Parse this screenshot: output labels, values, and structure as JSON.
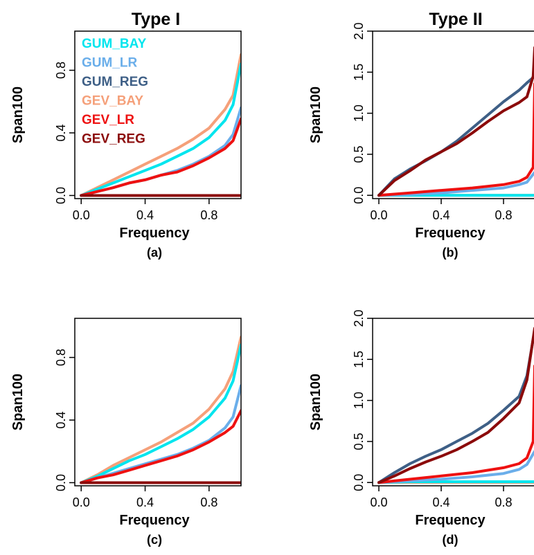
{
  "column_titles": [
    "Type I",
    "Type II"
  ],
  "colors": {
    "GUM_BAY": "#00e5ee",
    "GUM_LR": "#6aaeea",
    "GUM_REG": "#3e5f86",
    "GEV_BAY": "#f5a07a",
    "GEV_LR": "#ee1111",
    "GEV_REG": "#8b0a0a"
  },
  "chart_data": [
    {
      "type": "line",
      "panel": "a",
      "column_title": "Type I",
      "caption": "(a)",
      "xlabel": "Frequency",
      "ylabel": "Span100",
      "xlim": [
        -0.04,
        1.0
      ],
      "ylim": [
        -0.02,
        1.05
      ],
      "xticks": [
        "0.0",
        "0.4",
        "0.8"
      ],
      "yticks": [
        "0.0",
        "0.4",
        "0.8"
      ],
      "legend": [
        "GUM_BAY",
        "GUM_LR",
        "GUM_REG",
        "GEV_BAY",
        "GEV_LR",
        "GEV_REG"
      ],
      "legend_position": "top-left",
      "series": [
        {
          "name": "GUM_BAY",
          "points": [
            [
              0,
              0
            ],
            [
              0.1,
              0.04
            ],
            [
              0.2,
              0.08
            ],
            [
              0.3,
              0.12
            ],
            [
              0.4,
              0.16
            ],
            [
              0.5,
              0.2
            ],
            [
              0.6,
              0.25
            ],
            [
              0.7,
              0.3
            ],
            [
              0.8,
              0.37
            ],
            [
              0.9,
              0.48
            ],
            [
              0.95,
              0.58
            ],
            [
              1.0,
              0.84
            ]
          ]
        },
        {
          "name": "GUM_LR",
          "points": [
            [
              0,
              0
            ],
            [
              0.1,
              0.025
            ],
            [
              0.2,
              0.05
            ],
            [
              0.3,
              0.08
            ],
            [
              0.4,
              0.1
            ],
            [
              0.5,
              0.13
            ],
            [
              0.6,
              0.16
            ],
            [
              0.7,
              0.2
            ],
            [
              0.8,
              0.25
            ],
            [
              0.9,
              0.32
            ],
            [
              0.95,
              0.39
            ],
            [
              1.0,
              0.56
            ]
          ]
        },
        {
          "name": "GUM_REG",
          "points": [
            [
              0,
              0
            ],
            [
              1.0,
              0
            ]
          ]
        },
        {
          "name": "GEV_BAY",
          "points": [
            [
              0,
              0
            ],
            [
              0.1,
              0.05
            ],
            [
              0.2,
              0.1
            ],
            [
              0.3,
              0.15
            ],
            [
              0.4,
              0.2
            ],
            [
              0.5,
              0.25
            ],
            [
              0.6,
              0.3
            ],
            [
              0.7,
              0.36
            ],
            [
              0.8,
              0.43
            ],
            [
              0.9,
              0.55
            ],
            [
              0.95,
              0.64
            ],
            [
              1.0,
              0.9
            ]
          ]
        },
        {
          "name": "GEV_LR",
          "points": [
            [
              0,
              0
            ],
            [
              0.1,
              0.025
            ],
            [
              0.2,
              0.05
            ],
            [
              0.3,
              0.08
            ],
            [
              0.4,
              0.1
            ],
            [
              0.5,
              0.13
            ],
            [
              0.6,
              0.15
            ],
            [
              0.7,
              0.19
            ],
            [
              0.8,
              0.24
            ],
            [
              0.9,
              0.3
            ],
            [
              0.95,
              0.35
            ],
            [
              1.0,
              0.49
            ]
          ]
        },
        {
          "name": "GEV_REG",
          "points": [
            [
              0,
              0
            ],
            [
              1.0,
              0
            ]
          ]
        }
      ]
    },
    {
      "type": "line",
      "panel": "b",
      "column_title": "Type II",
      "caption": "(b)",
      "xlabel": "Frequency",
      "ylabel": "Span100",
      "xlim": [
        -0.04,
        1.0
      ],
      "ylim": [
        -0.04,
        2.0
      ],
      "xticks": [
        "0.0",
        "0.4",
        "0.8"
      ],
      "yticks": [
        "0.0",
        "0.5",
        "1.0",
        "1.5",
        "2.0"
      ],
      "series": [
        {
          "name": "GUM_BAY",
          "points": [
            [
              0,
              0
            ],
            [
              0.2,
              0.0
            ],
            [
              0.4,
              0.0
            ],
            [
              0.6,
              0.0
            ],
            [
              0.8,
              0.0
            ],
            [
              1.0,
              0.0
            ]
          ]
        },
        {
          "name": "GUM_LR",
          "points": [
            [
              0,
              0
            ],
            [
              0.2,
              0.01
            ],
            [
              0.4,
              0.03
            ],
            [
              0.6,
              0.06
            ],
            [
              0.8,
              0.09
            ],
            [
              0.9,
              0.13
            ],
            [
              0.95,
              0.16
            ],
            [
              1.0,
              0.28
            ]
          ]
        },
        {
          "name": "GUM_REG",
          "points": [
            [
              0,
              0
            ],
            [
              0.1,
              0.2
            ],
            [
              0.2,
              0.32
            ],
            [
              0.3,
              0.42
            ],
            [
              0.4,
              0.53
            ],
            [
              0.5,
              0.66
            ],
            [
              0.6,
              0.82
            ],
            [
              0.7,
              0.98
            ],
            [
              0.8,
              1.14
            ],
            [
              0.9,
              1.28
            ],
            [
              0.95,
              1.37
            ],
            [
              1.0,
              1.45
            ]
          ]
        },
        {
          "name": "GEV_BAY",
          "points": [
            [
              0,
              0
            ],
            [
              1.0,
              0
            ]
          ]
        },
        {
          "name": "GEV_LR",
          "points": [
            [
              0,
              0
            ],
            [
              0.2,
              0.03
            ],
            [
              0.4,
              0.06
            ],
            [
              0.6,
              0.09
            ],
            [
              0.8,
              0.13
            ],
            [
              0.9,
              0.17
            ],
            [
              0.95,
              0.22
            ],
            [
              0.99,
              0.34
            ],
            [
              1.0,
              1.36
            ]
          ]
        },
        {
          "name": "GEV_REG",
          "points": [
            [
              0,
              0
            ],
            [
              0.1,
              0.18
            ],
            [
              0.2,
              0.3
            ],
            [
              0.3,
              0.43
            ],
            [
              0.4,
              0.53
            ],
            [
              0.5,
              0.63
            ],
            [
              0.6,
              0.76
            ],
            [
              0.7,
              0.9
            ],
            [
              0.8,
              1.03
            ],
            [
              0.9,
              1.13
            ],
            [
              0.95,
              1.2
            ],
            [
              0.99,
              1.45
            ],
            [
              1.0,
              1.8
            ]
          ]
        }
      ]
    },
    {
      "type": "line",
      "panel": "c",
      "caption": "(c)",
      "xlabel": "Frequency",
      "ylabel": "Span100",
      "xlim": [
        -0.04,
        1.0
      ],
      "ylim": [
        -0.02,
        1.05
      ],
      "xticks": [
        "0.0",
        "0.4",
        "0.8"
      ],
      "yticks": [
        "0.0",
        "0.4",
        "0.8"
      ],
      "series": [
        {
          "name": "GUM_BAY",
          "points": [
            [
              0,
              0
            ],
            [
              0.1,
              0.04
            ],
            [
              0.2,
              0.09
            ],
            [
              0.3,
              0.14
            ],
            [
              0.4,
              0.18
            ],
            [
              0.5,
              0.23
            ],
            [
              0.6,
              0.28
            ],
            [
              0.7,
              0.34
            ],
            [
              0.8,
              0.42
            ],
            [
              0.9,
              0.54
            ],
            [
              0.95,
              0.65
            ],
            [
              1.0,
              0.88
            ]
          ]
        },
        {
          "name": "GUM_LR",
          "points": [
            [
              0,
              0
            ],
            [
              0.1,
              0.03
            ],
            [
              0.2,
              0.06
            ],
            [
              0.3,
              0.09
            ],
            [
              0.4,
              0.12
            ],
            [
              0.5,
              0.15
            ],
            [
              0.6,
              0.18
            ],
            [
              0.7,
              0.22
            ],
            [
              0.8,
              0.27
            ],
            [
              0.9,
              0.35
            ],
            [
              0.95,
              0.42
            ],
            [
              1.0,
              0.62
            ]
          ]
        },
        {
          "name": "GUM_REG",
          "points": [
            [
              0,
              0
            ],
            [
              1.0,
              0
            ]
          ]
        },
        {
          "name": "GEV_BAY",
          "points": [
            [
              0,
              0
            ],
            [
              0.1,
              0.05
            ],
            [
              0.2,
              0.11
            ],
            [
              0.3,
              0.16
            ],
            [
              0.4,
              0.21
            ],
            [
              0.5,
              0.26
            ],
            [
              0.6,
              0.32
            ],
            [
              0.7,
              0.38
            ],
            [
              0.8,
              0.47
            ],
            [
              0.9,
              0.6
            ],
            [
              0.95,
              0.71
            ],
            [
              1.0,
              0.93
            ]
          ]
        },
        {
          "name": "GEV_LR",
          "points": [
            [
              0,
              0
            ],
            [
              0.1,
              0.03
            ],
            [
              0.2,
              0.05
            ],
            [
              0.3,
              0.08
            ],
            [
              0.4,
              0.11
            ],
            [
              0.5,
              0.14
            ],
            [
              0.6,
              0.17
            ],
            [
              0.7,
              0.21
            ],
            [
              0.8,
              0.26
            ],
            [
              0.9,
              0.32
            ],
            [
              0.95,
              0.36
            ],
            [
              1.0,
              0.46
            ]
          ]
        },
        {
          "name": "GEV_REG",
          "points": [
            [
              0,
              0
            ],
            [
              1.0,
              0
            ]
          ]
        }
      ]
    },
    {
      "type": "line",
      "panel": "d",
      "caption": "(d)",
      "xlabel": "Frequency",
      "ylabel": "Span100",
      "xlim": [
        -0.04,
        1.0
      ],
      "ylim": [
        -0.04,
        2.0
      ],
      "xticks": [
        "0.0",
        "0.4",
        "0.8"
      ],
      "yticks": [
        "0.0",
        "0.5",
        "1.0",
        "1.5",
        "2.0"
      ],
      "series": [
        {
          "name": "GUM_BAY",
          "points": [
            [
              0,
              0
            ],
            [
              0.2,
              0.01
            ],
            [
              0.4,
              0.01
            ],
            [
              0.6,
              0.01
            ],
            [
              0.8,
              0.01
            ],
            [
              1.0,
              0.01
            ]
          ]
        },
        {
          "name": "GUM_LR",
          "points": [
            [
              0,
              0
            ],
            [
              0.2,
              0.02
            ],
            [
              0.4,
              0.04
            ],
            [
              0.6,
              0.07
            ],
            [
              0.8,
              0.11
            ],
            [
              0.9,
              0.16
            ],
            [
              0.95,
              0.22
            ],
            [
              1.0,
              0.38
            ]
          ]
        },
        {
          "name": "GUM_REG",
          "points": [
            [
              0,
              0
            ],
            [
              0.1,
              0.12
            ],
            [
              0.2,
              0.23
            ],
            [
              0.3,
              0.32
            ],
            [
              0.4,
              0.4
            ],
            [
              0.5,
              0.5
            ],
            [
              0.6,
              0.6
            ],
            [
              0.7,
              0.72
            ],
            [
              0.8,
              0.88
            ],
            [
              0.9,
              1.05
            ],
            [
              0.95,
              1.3
            ],
            [
              1.0,
              1.85
            ]
          ]
        },
        {
          "name": "GEV_BAY",
          "points": [
            [
              0,
              0
            ],
            [
              1.0,
              0
            ]
          ]
        },
        {
          "name": "GEV_LR",
          "points": [
            [
              0,
              0
            ],
            [
              0.2,
              0.04
            ],
            [
              0.4,
              0.08
            ],
            [
              0.6,
              0.12
            ],
            [
              0.8,
              0.18
            ],
            [
              0.9,
              0.23
            ],
            [
              0.95,
              0.3
            ],
            [
              0.99,
              0.5
            ],
            [
              1.0,
              1.42
            ]
          ]
        },
        {
          "name": "GEV_REG",
          "points": [
            [
              0,
              0
            ],
            [
              0.1,
              0.08
            ],
            [
              0.2,
              0.17
            ],
            [
              0.3,
              0.25
            ],
            [
              0.4,
              0.32
            ],
            [
              0.5,
              0.4
            ],
            [
              0.6,
              0.5
            ],
            [
              0.7,
              0.61
            ],
            [
              0.8,
              0.78
            ],
            [
              0.9,
              0.97
            ],
            [
              0.95,
              1.25
            ],
            [
              1.0,
              1.88
            ]
          ]
        }
      ]
    }
  ]
}
